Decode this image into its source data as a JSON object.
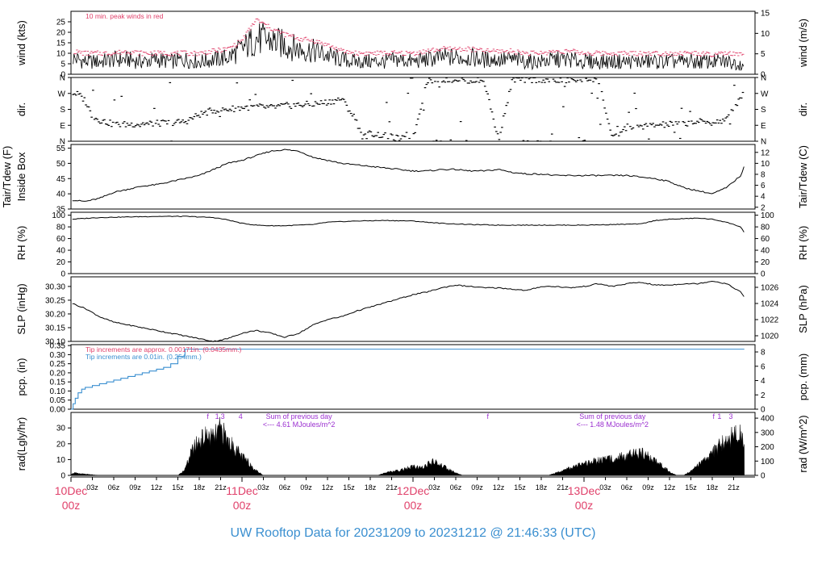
{
  "title": "UW Rooftop Data for 20231209  to  20231212 @ 21:46:33  (UTC)",
  "colors": {
    "peak": "#e0406a",
    "rain_old": "#e0406a",
    "rain_new": "#3a8fd0",
    "rad_note": "#9b30d0",
    "date": "#e0406a",
    "title": "#3a8fd0"
  },
  "chart_data": [
    {
      "type": "line",
      "id": "wind",
      "ylabel": "wind (kts)",
      "ylabel_right": "wind (m/s)",
      "yticks": [
        "0",
        "5",
        "10",
        "15",
        "20",
        "25"
      ],
      "yticks_right": [
        "0",
        "5",
        "10",
        "15"
      ],
      "ylim": [
        0,
        30
      ],
      "ylim_right": [
        0,
        15.4
      ],
      "annotation": "10 min. peak winds in red",
      "x": [
        0,
        2,
        4,
        6,
        8,
        10,
        12,
        14,
        16,
        18,
        20,
        22,
        24,
        26,
        28,
        30,
        32,
        34,
        36,
        38,
        40,
        42,
        44,
        46,
        48,
        50,
        52,
        54,
        56,
        58,
        60,
        62,
        64,
        66,
        68,
        70,
        72,
        74,
        76,
        78,
        80,
        82,
        84,
        86,
        88,
        90,
        92,
        94,
        96,
        94.5
      ],
      "series": [
        {
          "name": "wind",
          "values": [
            8,
            6,
            6,
            7,
            7,
            6,
            7,
            6,
            7,
            6,
            7,
            8,
            12,
            17,
            16,
            14,
            12,
            11,
            9,
            7,
            6,
            6,
            6,
            7,
            6,
            7,
            8,
            8,
            8,
            7,
            7,
            7,
            6,
            6,
            7,
            7,
            6,
            6,
            6,
            6,
            6,
            6,
            6,
            6,
            6,
            6,
            6,
            5,
            6,
            6
          ]
        },
        {
          "name": "peak",
          "values": [
            11,
            10,
            10,
            10,
            11,
            10,
            10,
            10,
            10,
            10,
            11,
            12,
            16,
            26,
            22,
            19,
            17,
            16,
            14,
            11,
            10,
            10,
            10,
            10,
            10,
            11,
            12,
            12,
            12,
            11,
            11,
            11,
            10,
            10,
            11,
            11,
            10,
            10,
            10,
            10,
            10,
            10,
            10,
            10,
            10,
            9,
            10,
            9,
            10,
            10
          ]
        }
      ]
    },
    {
      "type": "scatter",
      "id": "dir",
      "ylabel": "dir.",
      "ylabel_right": "dir.",
      "yticks": [
        "N",
        "E",
        "S",
        "W",
        "N"
      ],
      "ylim": [
        0,
        360
      ],
      "x": [
        0,
        1,
        2,
        3,
        4,
        6,
        8,
        10,
        12,
        14,
        16,
        18,
        20,
        22,
        24,
        26,
        28,
        30,
        32,
        34,
        36,
        38,
        40,
        41,
        42,
        44,
        46,
        48,
        50,
        52,
        54,
        56,
        58,
        60,
        62,
        64,
        66,
        68,
        70,
        72,
        74,
        76,
        78,
        80,
        82,
        84,
        86,
        88,
        90,
        92,
        94,
        94.5
      ],
      "series": [
        {
          "name": "dir",
          "values": [
            275,
            265,
            230,
            140,
            120,
            95,
            95,
            100,
            100,
            105,
            110,
            150,
            175,
            180,
            190,
            195,
            190,
            200,
            205,
            210,
            220,
            240,
            120,
            20,
            45,
            30,
            15,
            10,
            345,
            350,
            350,
            345,
            340,
            10,
            350,
            345,
            350,
            340,
            345,
            350,
            355,
            10,
            80,
            85,
            90,
            95,
            100,
            110,
            105,
            120,
            250,
            300
          ]
        }
      ]
    },
    {
      "type": "line",
      "id": "temp",
      "ylabel": "Tair/Tdew (F)",
      "ylabel2": "Inside Box",
      "ylabel_right": "Tair/Tdew (C)",
      "yticks": [
        "35",
        "40",
        "45",
        "50",
        "55"
      ],
      "yticks_right": [
        "2",
        "4",
        "6",
        "8",
        "10",
        "12"
      ],
      "ylim": [
        35,
        56.2
      ],
      "ylim_right": [
        1.67,
        13.44
      ],
      "x": [
        0,
        2,
        4,
        6,
        8,
        10,
        12,
        14,
        16,
        18,
        20,
        22,
        24,
        26,
        28,
        30,
        32,
        34,
        36,
        38,
        40,
        42,
        44,
        46,
        48,
        50,
        52,
        54,
        56,
        58,
        60,
        62,
        64,
        66,
        68,
        70,
        72,
        74,
        76,
        78,
        80,
        82,
        84,
        86,
        88,
        89,
        90,
        92,
        93,
        94,
        94.5
      ],
      "series": [
        {
          "name": "Tair",
          "values": [
            38,
            37.5,
            38.5,
            40.5,
            41.5,
            42.5,
            43,
            44,
            45,
            46,
            48,
            50,
            51,
            52.5,
            54,
            54.5,
            54,
            52,
            51,
            50,
            49.5,
            49,
            48.5,
            48,
            47.5,
            47.5,
            48,
            48,
            47.5,
            47.5,
            48,
            47,
            46.5,
            46.5,
            46,
            46,
            46,
            46,
            46,
            46,
            45.5,
            45,
            44,
            42,
            41,
            40.5,
            40,
            42,
            44,
            46,
            49
          ]
        }
      ]
    },
    {
      "type": "line",
      "id": "rh",
      "ylabel": "RH (%)",
      "ylabel_right": "RH (%)",
      "yticks": [
        "0",
        "20",
        "40",
        "60",
        "80",
        "100"
      ],
      "ylim": [
        0,
        105
      ],
      "x": [
        0,
        4,
        8,
        12,
        16,
        20,
        22,
        24,
        26,
        28,
        30,
        32,
        34,
        36,
        40,
        44,
        48,
        52,
        56,
        60,
        64,
        68,
        72,
        76,
        80,
        82,
        84,
        86,
        88,
        90,
        92,
        94,
        94.5
      ],
      "series": [
        {
          "name": "RH",
          "values": [
            93,
            96,
            97,
            98,
            98,
            96,
            92,
            86,
            83,
            82,
            82,
            83,
            84,
            88,
            90,
            91,
            90,
            86,
            84,
            83,
            83,
            83,
            83,
            84,
            85,
            91,
            93,
            94,
            95,
            93,
            88,
            80,
            70
          ]
        }
      ]
    },
    {
      "type": "line",
      "id": "slp",
      "ylabel": "SLP (inHg)",
      "ylabel_right": "SLP (hPa)",
      "yticks": [
        "30.10",
        "30.15",
        "30.20",
        "30.25",
        "30.30"
      ],
      "yticks_right": [
        "1020",
        "1022",
        "1024",
        "1026"
      ],
      "ylim": [
        30.1,
        30.335
      ],
      "ylim_right": [
        1019.3,
        1027.3
      ],
      "x": [
        0,
        2,
        4,
        6,
        8,
        10,
        12,
        14,
        16,
        18,
        20,
        22,
        24,
        26,
        28,
        30,
        32,
        34,
        36,
        38,
        40,
        42,
        44,
        46,
        48,
        50,
        52,
        54,
        56,
        58,
        60,
        62,
        64,
        66,
        68,
        70,
        72,
        74,
        76,
        78,
        80,
        82,
        84,
        86,
        88,
        90,
        92,
        94,
        94.5
      ],
      "series": [
        {
          "name": "SLP",
          "values": [
            30.24,
            30.22,
            30.19,
            30.17,
            30.16,
            30.15,
            30.14,
            30.13,
            30.12,
            30.11,
            30.1,
            30.11,
            30.13,
            30.14,
            30.13,
            30.115,
            30.13,
            30.16,
            30.18,
            30.19,
            30.21,
            30.225,
            30.24,
            30.255,
            30.27,
            30.28,
            30.295,
            30.305,
            30.3,
            30.295,
            30.295,
            30.29,
            30.285,
            30.3,
            30.3,
            30.295,
            30.3,
            30.31,
            30.3,
            30.31,
            30.315,
            30.305,
            30.305,
            30.31,
            30.31,
            30.32,
            30.31,
            30.28,
            30.26
          ]
        }
      ]
    },
    {
      "type": "line",
      "id": "pcp",
      "ylabel": "pcp. (in)",
      "ylabel_right": "pcp. (mm)",
      "yticks": [
        "0.00",
        "0.05",
        "0.10",
        "0.15",
        "0.20",
        "0.25",
        "0.30",
        "0.35"
      ],
      "yticks_right": [
        "0",
        "2",
        "4",
        "6",
        "8"
      ],
      "ylim": [
        0,
        0.355
      ],
      "ylim_right": [
        0,
        9.02
      ],
      "annotation_old": "Tip increments are approx. 0.00171in. (0.0435mm.)",
      "annotation_new": "Tip increments are 0.01in. (0.254mm.)",
      "x": [
        0,
        0.3,
        0.6,
        1,
        1.5,
        2,
        3,
        4,
        5,
        6,
        7,
        8,
        9,
        10,
        11,
        12,
        13,
        14,
        15,
        16,
        94.5
      ],
      "series": [
        {
          "name": "precip",
          "values": [
            0,
            0.03,
            0.06,
            0.09,
            0.11,
            0.12,
            0.13,
            0.14,
            0.15,
            0.16,
            0.17,
            0.18,
            0.19,
            0.2,
            0.21,
            0.22,
            0.23,
            0.25,
            0.29,
            0.33,
            0.33
          ]
        }
      ]
    },
    {
      "type": "area",
      "id": "rad",
      "ylabel": "rad(Lgly/hr)",
      "ylabel_right": "rad (W/m^2)",
      "yticks": [
        "0",
        "10",
        "20",
        "30"
      ],
      "yticks_right": [
        "0",
        "100",
        "200",
        "300",
        "400"
      ],
      "ylim": [
        0,
        39.8
      ],
      "ylim_right": [
        0,
        440
      ],
      "top_labels": [
        {
          "x": 19.2,
          "text": "f"
        },
        {
          "x": 20.5,
          "text": "1"
        },
        {
          "x": 21.3,
          "text": "3"
        },
        {
          "x": 23.8,
          "text": "4"
        },
        {
          "x": 58.5,
          "text": "f"
        },
        {
          "x": 90.2,
          "text": "f"
        },
        {
          "x": 91.0,
          "text": "1"
        },
        {
          "x": 92.6,
          "text": "3"
        }
      ],
      "sum_labels": [
        {
          "x": 32,
          "line1": "Sum of previous day",
          "line2": "<--- 4.61 MJoules/m^2"
        },
        {
          "x": 76,
          "line1": "Sum of previous day",
          "line2": "<--- 1.48 MJoules/m^2"
        }
      ],
      "x": [
        0,
        0.5,
        1,
        2,
        3,
        4,
        15,
        16,
        17,
        18,
        19,
        20,
        21,
        22,
        23,
        24,
        25,
        26,
        27,
        43,
        44,
        46,
        48,
        49,
        50,
        51,
        52,
        53,
        54,
        55,
        67,
        68,
        70,
        72,
        74,
        76,
        78,
        80,
        81,
        82,
        83,
        84,
        85,
        86,
        87,
        88,
        89,
        90,
        91,
        92,
        93,
        94,
        94.5
      ],
      "series": [
        {
          "name": "rad",
          "values": [
            1,
            2,
            1.5,
            1,
            0.5,
            0,
            0,
            5,
            20,
            28,
            32,
            30,
            38,
            28,
            22,
            15,
            10,
            4,
            0,
            0,
            2,
            4,
            7,
            6,
            9,
            11,
            8,
            5,
            2,
            0,
            0,
            2,
            6,
            9,
            12,
            14,
            16,
            18,
            15,
            12,
            8,
            3,
            0,
            0,
            4,
            8,
            12,
            18,
            24,
            29,
            32,
            33,
            21
          ]
        }
      ]
    }
  ],
  "x_axis": {
    "ticks": [
      {
        "h": 3,
        "label": "03z"
      },
      {
        "h": 6,
        "label": "06z"
      },
      {
        "h": 9,
        "label": "09z"
      },
      {
        "h": 12,
        "label": "12z"
      },
      {
        "h": 15,
        "label": "15z"
      },
      {
        "h": 18,
        "label": "18z"
      },
      {
        "h": 21,
        "label": "21z"
      },
      {
        "h": 27,
        "label": "03z"
      },
      {
        "h": 30,
        "label": "06z"
      },
      {
        "h": 33,
        "label": "09z"
      },
      {
        "h": 36,
        "label": "12z"
      },
      {
        "h": 39,
        "label": "15z"
      },
      {
        "h": 42,
        "label": "18z"
      },
      {
        "h": 45,
        "label": "21z"
      },
      {
        "h": 51,
        "label": "03z"
      },
      {
        "h": 54,
        "label": "06z"
      },
      {
        "h": 57,
        "label": "09z"
      },
      {
        "h": 60,
        "label": "12z"
      },
      {
        "h": 63,
        "label": "15z"
      },
      {
        "h": 66,
        "label": "18z"
      },
      {
        "h": 69,
        "label": "21z"
      },
      {
        "h": 75,
        "label": "03z"
      },
      {
        "h": 78,
        "label": "06z"
      },
      {
        "h": 81,
        "label": "09z"
      },
      {
        "h": 84,
        "label": "12z"
      },
      {
        "h": 87,
        "label": "15z"
      },
      {
        "h": 90,
        "label": "18z"
      },
      {
        "h": 93,
        "label": "21z"
      }
    ],
    "dates": [
      {
        "h": 0,
        "day": "10Dec",
        "hour": "00z"
      },
      {
        "h": 24,
        "day": "11Dec",
        "hour": "00z"
      },
      {
        "h": 48,
        "day": "12Dec",
        "hour": "00z"
      },
      {
        "h": 72,
        "day": "13Dec",
        "hour": "00z"
      }
    ]
  }
}
